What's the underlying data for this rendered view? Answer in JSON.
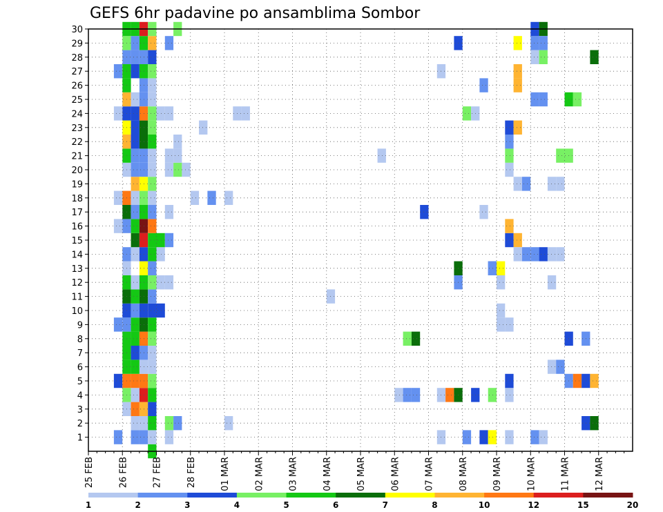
{
  "chart_data": {
    "type": "heatmap",
    "title": "GEFS 6hr padavine po ansamblima Sombor",
    "x_tick_labels": [
      "25 FEB",
      "26 FEB",
      "27 FEB",
      "28 FEB",
      "01 MAR",
      "02 MAR",
      "03 MAR",
      "04 MAR",
      "05 MAR",
      "06 MAR",
      "07 MAR",
      "08 MAR",
      "09 MAR",
      "10 MAR",
      "11 MAR",
      "12 MAR"
    ],
    "y_tick_labels": [
      "1",
      "2",
      "3",
      "4",
      "5",
      "6",
      "7",
      "8",
      "9",
      "10",
      "11",
      "12",
      "13",
      "14",
      "15",
      "16",
      "17",
      "18",
      "19",
      "20",
      "21",
      "22",
      "23",
      "24",
      "25",
      "26",
      "27",
      "28",
      "29",
      "30"
    ],
    "xlim_days": [
      0,
      16
    ],
    "ylim": [
      0,
      30
    ],
    "grid": true,
    "colorbar": {
      "position": "bottom",
      "boundary_labels": [
        "1",
        "2",
        "3",
        "4",
        "5",
        "6",
        "7",
        "8",
        "10",
        "12",
        "15",
        "20"
      ],
      "colors": [
        "#b4c8f0",
        "#6491f0",
        "#1e4bd7",
        "#78f064",
        "#14c814",
        "#0a6e0a",
        "#ffff00",
        "#ffb432",
        "#ff7814",
        "#dc1e1e",
        "#781414"
      ]
    },
    "cells_note": "each cell: [day_offset, member, class_index]; class_index refers to colorbar.colors",
    "cells": [
      [
        0.75,
        1,
        1
      ],
      [
        0.75,
        5,
        2
      ],
      [
        0.75,
        9,
        1
      ],
      [
        0.75,
        16,
        0
      ],
      [
        0.75,
        18,
        0
      ],
      [
        0.75,
        24,
        0
      ],
      [
        0.75,
        27,
        1
      ],
      [
        1.0,
        3,
        0
      ],
      [
        1.0,
        4,
        3
      ],
      [
        1.0,
        5,
        8
      ],
      [
        1.0,
        6,
        4
      ],
      [
        1.0,
        7,
        4
      ],
      [
        1.0,
        8,
        4
      ],
      [
        1.0,
        9,
        1
      ],
      [
        1.0,
        10,
        2
      ],
      [
        1.0,
        11,
        5
      ],
      [
        1.0,
        12,
        4
      ],
      [
        1.0,
        13,
        0
      ],
      [
        1.0,
        14,
        1
      ],
      [
        1.0,
        16,
        1
      ],
      [
        1.0,
        17,
        5
      ],
      [
        1.0,
        18,
        8
      ],
      [
        1.0,
        20,
        0
      ],
      [
        1.0,
        21,
        4
      ],
      [
        1.0,
        22,
        7
      ],
      [
        1.0,
        23,
        6
      ],
      [
        1.0,
        24,
        2
      ],
      [
        1.0,
        25,
        7
      ],
      [
        1.0,
        26,
        4
      ],
      [
        1.0,
        27,
        4
      ],
      [
        1.0,
        28,
        1
      ],
      [
        1.0,
        29,
        3
      ],
      [
        1.0,
        30,
        4
      ],
      [
        1.25,
        1,
        1
      ],
      [
        1.25,
        2,
        0
      ],
      [
        1.25,
        3,
        8
      ],
      [
        1.25,
        4,
        0
      ],
      [
        1.25,
        5,
        8
      ],
      [
        1.25,
        6,
        4
      ],
      [
        1.25,
        7,
        2
      ],
      [
        1.25,
        8,
        4
      ],
      [
        1.25,
        9,
        4
      ],
      [
        1.25,
        10,
        1
      ],
      [
        1.25,
        11,
        4
      ],
      [
        1.25,
        12,
        0
      ],
      [
        1.25,
        14,
        0
      ],
      [
        1.25,
        15,
        5
      ],
      [
        1.25,
        16,
        4
      ],
      [
        1.25,
        17,
        1
      ],
      [
        1.25,
        18,
        0
      ],
      [
        1.25,
        19,
        7
      ],
      [
        1.25,
        20,
        1
      ],
      [
        1.25,
        21,
        1
      ],
      [
        1.25,
        22,
        2
      ],
      [
        1.25,
        23,
        2
      ],
      [
        1.25,
        24,
        2
      ],
      [
        1.25,
        25,
        0
      ],
      [
        1.25,
        27,
        2
      ],
      [
        1.25,
        28,
        1
      ],
      [
        1.25,
        29,
        1
      ],
      [
        1.25,
        30,
        4
      ],
      [
        1.5,
        1,
        1
      ],
      [
        1.5,
        2,
        0
      ],
      [
        1.5,
        3,
        7
      ],
      [
        1.5,
        4,
        9
      ],
      [
        1.5,
        5,
        8
      ],
      [
        1.5,
        6,
        0
      ],
      [
        1.5,
        7,
        1
      ],
      [
        1.5,
        8,
        8
      ],
      [
        1.5,
        9,
        5
      ],
      [
        1.5,
        10,
        2
      ],
      [
        1.5,
        11,
        5
      ],
      [
        1.5,
        12,
        4
      ],
      [
        1.5,
        13,
        6
      ],
      [
        1.5,
        14,
        2
      ],
      [
        1.5,
        15,
        9
      ],
      [
        1.5,
        16,
        10
      ],
      [
        1.5,
        17,
        4
      ],
      [
        1.5,
        18,
        3
      ],
      [
        1.5,
        19,
        6
      ],
      [
        1.5,
        20,
        1
      ],
      [
        1.5,
        21,
        1
      ],
      [
        1.5,
        22,
        5
      ],
      [
        1.5,
        23,
        5
      ],
      [
        1.5,
        24,
        8
      ],
      [
        1.5,
        25,
        1
      ],
      [
        1.5,
        26,
        1
      ],
      [
        1.5,
        27,
        4
      ],
      [
        1.5,
        28,
        1
      ],
      [
        1.5,
        29,
        4
      ],
      [
        1.5,
        30,
        9
      ],
      [
        1.75,
        0,
        4
      ],
      [
        1.75,
        1,
        0
      ],
      [
        1.75,
        2,
        4
      ],
      [
        1.75,
        3,
        2
      ],
      [
        1.75,
        4,
        4
      ],
      [
        1.75,
        5,
        3
      ],
      [
        1.75,
        6,
        0
      ],
      [
        1.75,
        7,
        0
      ],
      [
        1.75,
        8,
        3
      ],
      [
        1.75,
        9,
        4
      ],
      [
        1.75,
        10,
        2
      ],
      [
        1.75,
        11,
        1
      ],
      [
        1.75,
        12,
        3
      ],
      [
        1.75,
        13,
        1
      ],
      [
        1.75,
        14,
        4
      ],
      [
        1.75,
        15,
        4
      ],
      [
        1.75,
        16,
        8
      ],
      [
        1.75,
        17,
        1
      ],
      [
        1.75,
        18,
        0
      ],
      [
        1.75,
        19,
        3
      ],
      [
        1.75,
        20,
        0
      ],
      [
        1.75,
        21,
        0
      ],
      [
        1.75,
        22,
        4
      ],
      [
        1.75,
        23,
        3
      ],
      [
        1.75,
        24,
        3
      ],
      [
        1.75,
        25,
        0
      ],
      [
        1.75,
        26,
        0
      ],
      [
        1.75,
        27,
        3
      ],
      [
        1.75,
        28,
        2
      ],
      [
        1.75,
        29,
        7
      ],
      [
        1.75,
        30,
        3
      ],
      [
        2.0,
        10,
        2
      ],
      [
        2.0,
        12,
        0
      ],
      [
        2.0,
        14,
        0
      ],
      [
        2.0,
        15,
        4
      ],
      [
        2.0,
        24,
        0
      ],
      [
        2.25,
        1,
        0
      ],
      [
        2.25,
        2,
        3
      ],
      [
        2.25,
        12,
        0
      ],
      [
        2.25,
        15,
        1
      ],
      [
        2.25,
        17,
        0
      ],
      [
        2.25,
        20,
        0
      ],
      [
        2.25,
        21,
        0
      ],
      [
        2.25,
        24,
        0
      ],
      [
        2.25,
        29,
        1
      ],
      [
        2.5,
        2,
        1
      ],
      [
        2.5,
        20,
        3
      ],
      [
        2.5,
        21,
        0
      ],
      [
        2.5,
        22,
        0
      ],
      [
        2.5,
        30,
        3
      ],
      [
        2.75,
        20,
        0
      ],
      [
        3.0,
        18,
        0
      ],
      [
        3.25,
        23,
        0
      ],
      [
        3.5,
        18,
        1
      ],
      [
        4.0,
        2,
        0
      ],
      [
        4.0,
        18,
        0
      ],
      [
        4.25,
        24,
        0
      ],
      [
        4.5,
        24,
        0
      ],
      [
        7.0,
        11,
        0
      ],
      [
        9.0,
        4,
        0
      ],
      [
        9.25,
        4,
        1
      ],
      [
        9.25,
        8,
        3
      ],
      [
        9.5,
        4,
        1
      ],
      [
        9.5,
        8,
        5
      ],
      [
        8.5,
        21,
        0
      ],
      [
        9.75,
        17,
        2
      ],
      [
        10.25,
        1,
        0
      ],
      [
        10.25,
        4,
        0
      ],
      [
        10.25,
        27,
        0
      ],
      [
        10.5,
        4,
        8
      ],
      [
        10.75,
        4,
        5
      ],
      [
        10.75,
        12,
        1
      ],
      [
        10.75,
        13,
        5
      ],
      [
        10.75,
        29,
        2
      ],
      [
        11.0,
        1,
        1
      ],
      [
        11.0,
        24,
        3
      ],
      [
        11.25,
        24,
        0
      ],
      [
        11.25,
        4,
        2
      ],
      [
        11.5,
        1,
        2
      ],
      [
        11.5,
        17,
        0
      ],
      [
        11.5,
        26,
        1
      ],
      [
        11.75,
        4,
        3
      ],
      [
        11.75,
        1,
        6
      ],
      [
        11.75,
        13,
        1
      ],
      [
        11.75,
        13,
        1
      ],
      [
        12.0,
        13,
        6
      ],
      [
        12.0,
        12,
        0
      ],
      [
        12.0,
        9,
        0
      ],
      [
        12.0,
        10,
        0
      ],
      [
        12.25,
        9,
        0
      ],
      [
        12.25,
        1,
        0
      ],
      [
        12.25,
        4,
        0
      ],
      [
        12.25,
        5,
        2
      ],
      [
        12.25,
        15,
        2
      ],
      [
        12.25,
        16,
        7
      ],
      [
        12.25,
        20,
        0
      ],
      [
        12.25,
        21,
        3
      ],
      [
        12.25,
        22,
        1
      ],
      [
        12.25,
        23,
        2
      ],
      [
        12.5,
        23,
        7
      ],
      [
        12.5,
        26,
        7
      ],
      [
        12.5,
        15,
        7
      ],
      [
        12.5,
        14,
        0
      ],
      [
        12.5,
        19,
        0
      ],
      [
        12.5,
        27,
        7
      ],
      [
        12.5,
        29,
        6
      ],
      [
        12.75,
        14,
        1
      ],
      [
        12.75,
        19,
        1
      ],
      [
        13.0,
        14,
        1
      ],
      [
        13.0,
        25,
        1
      ],
      [
        13.0,
        1,
        1
      ],
      [
        13.0,
        28,
        0
      ],
      [
        13.0,
        29,
        1
      ],
      [
        13.0,
        30,
        2
      ],
      [
        13.25,
        1,
        0
      ],
      [
        13.25,
        28,
        3
      ],
      [
        13.25,
        30,
        5
      ],
      [
        13.25,
        14,
        2
      ],
      [
        13.25,
        29,
        1
      ],
      [
        13.25,
        25,
        1
      ],
      [
        13.5,
        14,
        0
      ],
      [
        13.5,
        12,
        0
      ],
      [
        13.5,
        6,
        0
      ],
      [
        13.5,
        19,
        0
      ],
      [
        13.75,
        6,
        1
      ],
      [
        13.75,
        19,
        0
      ],
      [
        13.75,
        21,
        3
      ],
      [
        14.0,
        21,
        3
      ],
      [
        13.75,
        14,
        0
      ],
      [
        14.0,
        5,
        1
      ],
      [
        14.0,
        25,
        4
      ],
      [
        14.0,
        8,
        2
      ],
      [
        14.25,
        25,
        3
      ],
      [
        14.25,
        5,
        8
      ],
      [
        14.5,
        5,
        2
      ],
      [
        14.5,
        2,
        2
      ],
      [
        14.5,
        8,
        1
      ],
      [
        14.75,
        5,
        7
      ],
      [
        14.75,
        2,
        5
      ],
      [
        14.75,
        28,
        5
      ]
    ]
  }
}
